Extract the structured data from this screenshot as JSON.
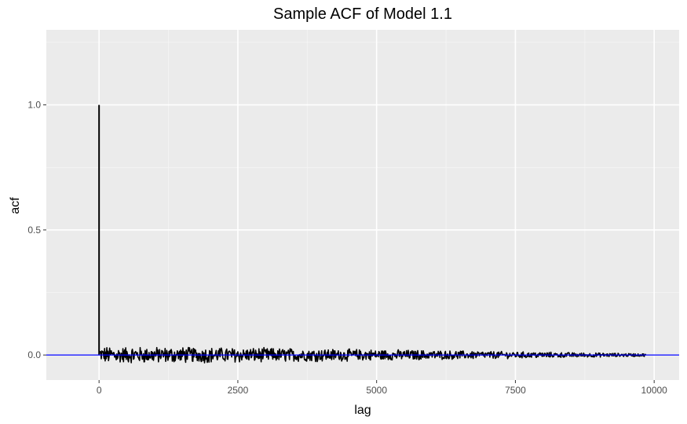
{
  "chart_data": {
    "type": "line",
    "title": "Sample ACF of Model 1.1",
    "xlabel": "lag",
    "ylabel": "acf",
    "xlim": [
      -950,
      10450
    ],
    "ylim": [
      -0.1,
      1.3
    ],
    "x_ticks": [
      0,
      2500,
      5000,
      7500,
      10000
    ],
    "x_tick_labels": [
      "0",
      "2500",
      "5000",
      "7500",
      "10000"
    ],
    "y_ticks": [
      0.0,
      0.5,
      1.0
    ],
    "y_tick_labels": [
      "0.0",
      "0.5",
      "1.0"
    ],
    "grid": true,
    "legend": "none",
    "series": [
      {
        "values_description_free": true,
        "lag0_value": 1.0,
        "lag_max": 9850,
        "noise_envelope": [
          {
            "lag": 0,
            "amp": 0.03
          },
          {
            "lag": 2500,
            "amp": 0.027
          },
          {
            "lag": 5000,
            "amp": 0.02
          },
          {
            "lag": 7500,
            "amp": 0.012
          },
          {
            "lag": 9850,
            "amp": 0.005
          }
        ]
      }
    ],
    "reference_line": {
      "y": 0,
      "color": "#0000ff"
    },
    "colors": {
      "panel_background": "#ebebeb",
      "grid_major": "#ffffff",
      "series_line": "#000000"
    }
  }
}
